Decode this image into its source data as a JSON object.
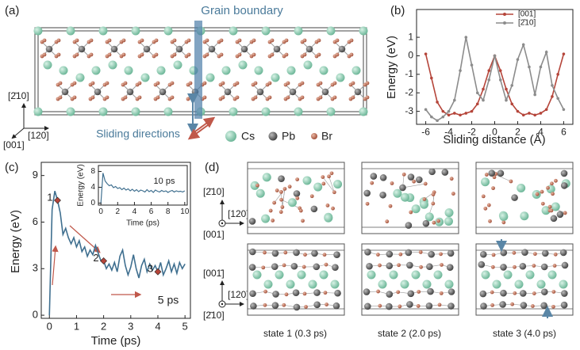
{
  "panel_labels": [
    "(a)",
    "(b)",
    "(c)",
    "(d)"
  ],
  "panel_a": {
    "annotations": [
      "Grain boundary",
      "Sliding directions"
    ],
    "legend": [
      "Cs",
      "Pb",
      "Br"
    ],
    "axes": [
      "[2̄10]",
      "[001]",
      "[120]"
    ]
  },
  "chart_data": [
    {
      "type": "line",
      "xlabel": "Sliding distance (Å)",
      "ylabel": "Energy (eV)",
      "x": [
        -6,
        -5.5,
        -5,
        -4.5,
        -4,
        -3.5,
        -3,
        -2.5,
        -2,
        -1.5,
        -1,
        -0.5,
        0,
        0.5,
        1,
        1.5,
        2,
        2.5,
        3,
        3.5,
        4,
        4.5,
        5,
        5.5,
        6
      ],
      "series": [
        {
          "name": "[001]",
          "color": "#b5453a",
          "values": [
            0.1,
            -1.2,
            -2.5,
            -3.0,
            -3.2,
            -3.1,
            -3.2,
            -3.1,
            -3.0,
            -2.6,
            -1.8,
            -0.8,
            0.0,
            -0.8,
            -1.8,
            -2.6,
            -3.0,
            -3.2,
            -3.1,
            -3.2,
            -3.1,
            -2.9,
            -2.2,
            -1.0,
            0.1
          ]
        },
        {
          "name": "[2̄10]",
          "color": "#8c8c8c",
          "values": [
            -2.9,
            -3.3,
            -3.5,
            -3.3,
            -3.0,
            -2.4,
            -0.8,
            1.0,
            -0.5,
            -2.0,
            -2.4,
            -1.3,
            0.0,
            -1.3,
            -2.4,
            -1.6,
            -0.2,
            0.6,
            -0.6,
            -2.1,
            -0.6,
            0.2,
            -1.6,
            -2.3,
            -2.9
          ]
        }
      ],
      "xlim": [
        -6.8,
        6.8
      ],
      "ylim": [
        -3.7,
        2.5
      ],
      "xticks": [
        -6,
        -4,
        -2,
        0,
        2,
        4,
        6
      ],
      "yticks": [
        -3,
        -2,
        -1,
        0,
        1
      ],
      "point_markers": true,
      "legend": "upper right"
    },
    {
      "type": "line",
      "xlabel": "Time (ps)",
      "ylabel": "Energy (eV)",
      "annotation": "5 ps",
      "x": [
        0,
        0.1,
        0.2,
        0.3,
        0.4,
        0.5,
        0.6,
        0.7,
        0.8,
        0.9,
        1.0,
        1.1,
        1.2,
        1.3,
        1.4,
        1.5,
        1.6,
        1.7,
        1.8,
        1.9,
        2.0,
        2.1,
        2.2,
        2.3,
        2.4,
        2.5,
        2.6,
        2.7,
        2.8,
        2.9,
        3.0,
        3.1,
        3.2,
        3.3,
        3.4,
        3.5,
        3.6,
        3.7,
        3.8,
        3.9,
        4.0,
        4.1,
        4.2,
        4.3,
        4.4,
        4.5,
        4.6,
        4.7,
        4.8,
        4.9,
        5.0
      ],
      "series": [
        {
          "color": "#3f6f8f",
          "values": [
            0,
            6.8,
            8.0,
            7.4,
            6.6,
            5.2,
            5.6,
            5.0,
            4.6,
            5.0,
            4.4,
            4.8,
            4.1,
            4.4,
            3.8,
            4.2,
            3.9,
            4.5,
            4.0,
            3.5,
            3.5,
            3.0,
            3.3,
            2.9,
            3.4,
            2.8,
            3.8,
            4.2,
            3.2,
            2.6,
            3.1,
            3.9,
            3.0,
            2.4,
            3.2,
            3.6,
            2.8,
            3.3,
            2.9,
            3.2,
            2.8,
            3.4,
            2.6,
            3.0,
            3.5,
            2.8,
            3.3,
            2.7,
            3.4,
            3.0,
            3.3
          ]
        }
      ],
      "markers": {
        "labels": [
          "1",
          "2",
          "3"
        ],
        "x": [
          0.3,
          2.0,
          4.0
        ],
        "values": [
          7.4,
          3.5,
          2.8
        ],
        "color": "#b5453a"
      },
      "xlim": [
        -0.3,
        5.2
      ],
      "ylim": [
        -0.2,
        9.85
      ],
      "xticks": [
        0,
        1,
        2,
        3,
        4,
        5
      ],
      "yticks": [
        0,
        3,
        6,
        9
      ]
    },
    {
      "type": "line",
      "xlabel": "Time (ps)",
      "ylabel": "Energy (eV)",
      "annotation": "10 ps",
      "x": [
        0,
        0.25,
        0.5,
        0.75,
        1,
        1.25,
        1.5,
        1.75,
        2,
        2.25,
        2.5,
        2.75,
        3,
        3.25,
        3.5,
        3.75,
        4,
        4.25,
        4.5,
        4.75,
        5,
        5.25,
        5.5,
        5.75,
        6,
        6.25,
        6.5,
        6.75,
        7,
        7.25,
        7.5,
        7.75,
        8,
        8.25,
        8.5,
        8.75,
        9,
        9.25,
        9.5,
        9.75,
        10
      ],
      "series": [
        {
          "color": "#3f6f8f",
          "values": [
            0,
            7.6,
            5.6,
            4.9,
            4.4,
            4.6,
            3.9,
            4.2,
            3.7,
            3.9,
            3.4,
            3.8,
            3.3,
            3.6,
            3.1,
            3.5,
            3.0,
            3.4,
            2.9,
            3.3,
            3.1,
            2.8,
            3.4,
            2.9,
            3.2,
            2.7,
            3.3,
            3.0,
            2.8,
            3.2,
            2.9,
            3.1,
            2.7,
            3.0,
            3.2,
            2.8,
            3.1,
            2.9,
            3.0,
            2.8,
            3.1
          ]
        }
      ],
      "xlim": [
        -0.3,
        10.3
      ],
      "ylim": [
        -0.5,
        9.5
      ],
      "xticks": [
        0,
        2,
        4,
        6,
        8,
        10
      ],
      "yticks": [
        0,
        4,
        8
      ]
    }
  ],
  "panel_d": {
    "axes_top": [
      "[2̄10]",
      "[120]",
      "[001]"
    ],
    "axes_bottom": [
      "[001̄]",
      "[120]",
      "[2̄10]"
    ],
    "states": [
      "state 1 (0.3 ps)",
      "state 2 (2.0 ps)",
      "state 3 (4.0 ps)"
    ]
  }
}
